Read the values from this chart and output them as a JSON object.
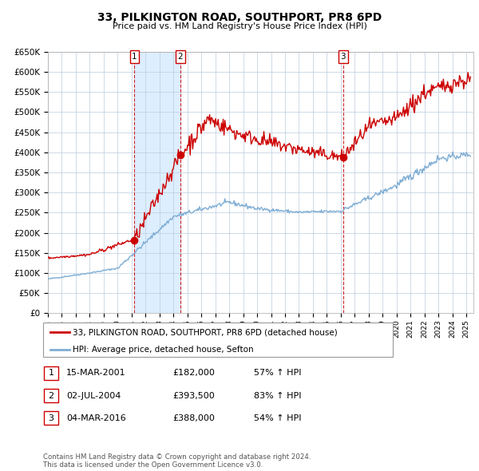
{
  "title_line1": "33, PILKINGTON ROAD, SOUTHPORT, PR8 6PD",
  "title_line2": "Price paid vs. HM Land Registry's House Price Index (HPI)",
  "ylabel_ticks": [
    "£0",
    "£50K",
    "£100K",
    "£150K",
    "£200K",
    "£250K",
    "£300K",
    "£350K",
    "£400K",
    "£450K",
    "£500K",
    "£550K",
    "£600K",
    "£650K"
  ],
  "ytick_values": [
    0,
    50000,
    100000,
    150000,
    200000,
    250000,
    300000,
    350000,
    400000,
    450000,
    500000,
    550000,
    600000,
    650000
  ],
  "xlim_start": 1995.0,
  "xlim_end": 2025.5,
  "ylim_min": 0,
  "ylim_max": 650000,
  "sale_dates": [
    2001.21,
    2004.5,
    2016.17
  ],
  "sale_prices": [
    182000,
    393500,
    388000
  ],
  "sale_labels": [
    "1",
    "2",
    "3"
  ],
  "legend_line1": "33, PILKINGTON ROAD, SOUTHPORT, PR8 6PD (detached house)",
  "legend_line2": "HPI: Average price, detached house, Sefton",
  "table_rows": [
    {
      "num": "1",
      "date": "15-MAR-2001",
      "price": "£182,000",
      "hpi": "57% ↑ HPI"
    },
    {
      "num": "2",
      "date": "02-JUL-2004",
      "price": "£393,500",
      "hpi": "83% ↑ HPI"
    },
    {
      "num": "3",
      "date": "04-MAR-2016",
      "price": "£388,000",
      "hpi": "54% ↑ HPI"
    }
  ],
  "footnote": "Contains HM Land Registry data © Crown copyright and database right 2024.\nThis data is licensed under the Open Government Licence v3.0.",
  "red_color": "#cc0000",
  "blue_color": "#7eadd4",
  "shaded_region_color": "#ddeeff",
  "grid_color": "#bbccdd",
  "background_color": "#ffffff"
}
